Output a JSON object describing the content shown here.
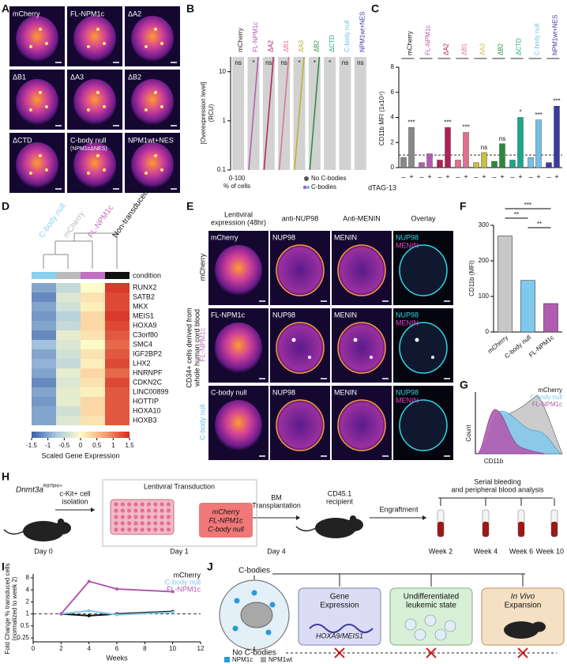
{
  "panel_letters": [
    "A",
    "B",
    "C",
    "D",
    "E",
    "F",
    "G",
    "H",
    "I",
    "J"
  ],
  "panels": {
    "A": {
      "labels": [
        "mCherry",
        "FL-NPM1c",
        "ΔA2",
        "ΔB1",
        "ΔA3",
        "ΔB2",
        "ΔCTD",
        "C-body null",
        "NPM1wt+NES"
      ],
      "sublabel": "(NPM1cΔNES)"
    },
    "B": {
      "ylabel": [
        "[Overexpression level]",
        "(RCU)"
      ],
      "xlabel": [
        "0-100",
        "% of cells"
      ],
      "columns": [
        "mCherry",
        "FL-NPM1c",
        "ΔA2",
        "ΔB1",
        "ΔA3",
        "ΔB2",
        "ΔCTD",
        "C-body null",
        "NPM1wt+NES"
      ],
      "colors": [
        "#222222",
        "#b05cb0",
        "#b0205a",
        "#e07090",
        "#b8b030",
        "#2a8a3a",
        "#1aa88a",
        "#70c0e8",
        "#3a3aa0"
      ],
      "significance": [
        "ns",
        "*",
        "ns",
        "ns",
        "*",
        "*",
        "*",
        "ns",
        "ns"
      ],
      "ylim": [
        0.1,
        20
      ],
      "yticks": [
        0.1,
        1,
        10
      ],
      "log_scale": true,
      "legend": [
        "No C-bodies",
        "C-bodies"
      ]
    },
    "D": {
      "columns": [
        "C-body null",
        "mCherry",
        "FL-NPM1c",
        "Non-transduced"
      ],
      "column_colors": [
        "#8ad0f0",
        "#bbbbbb",
        "#c070c0",
        "#111111"
      ],
      "condition_label": "condition",
      "genes": [
        "RUNX2",
        "SATB2",
        "MKX",
        "MEIS1",
        "HOXA9",
        "C3orf80",
        "SMC4",
        "IGF2BP2",
        "LHX2",
        "HNRNPF",
        "CDKN2C",
        "LINC00899",
        "HOTTIP",
        "HOXA10",
        "HOXB3"
      ],
      "values": [
        [
          -1,
          -0.5,
          0,
          1.4
        ],
        [
          -1.2,
          -0.3,
          0.2,
          1.3
        ],
        [
          -1,
          -0.4,
          0.1,
          1.3
        ],
        [
          -1.1,
          -0.6,
          0.3,
          1.4
        ],
        [
          -1,
          -0.5,
          0.3,
          1.3
        ],
        [
          -1.2,
          -0.2,
          0.2,
          1.2
        ],
        [
          -0.8,
          -0.3,
          0,
          1.1
        ],
        [
          -1,
          -0.4,
          0.2,
          1.2
        ],
        [
          -0.9,
          -0.5,
          0.1,
          1.3
        ],
        [
          -1,
          -0.2,
          0.3,
          1.1
        ],
        [
          -1.2,
          -0.3,
          0.2,
          1.3
        ],
        [
          -1,
          -0.2,
          0.1,
          1.2
        ],
        [
          -1.1,
          -0.2,
          0.3,
          1.2
        ],
        [
          -1,
          -0.4,
          0.3,
          1.2
        ],
        [
          -1,
          -0.3,
          0.2,
          1.2
        ]
      ],
      "clim": [
        -1.5,
        1.5
      ],
      "colorbar_ticks": [
        -1.5,
        -1,
        -0.5,
        0,
        0.5,
        1,
        1.5
      ],
      "colorbar_label": "Scaled Gene Expression"
    },
    "E": {
      "columns": [
        [
          "Lentiviral",
          "expression (48hr)"
        ],
        [
          "anti-NUP98"
        ],
        [
          "Anti-MENIN"
        ],
        [
          "Overlay"
        ]
      ],
      "rows": [
        "mCherry",
        "FL-NPM1c",
        "C-body null"
      ],
      "row_colors": [
        "#111111",
        "#c070c0",
        "#70c0e8"
      ],
      "side_label": [
        "CD34+ cells derived from",
        "whole human cord blood"
      ],
      "markers": [
        "NUP98",
        "MENIN"
      ]
    },
    "G": {
      "legend": [
        "mCherry",
        "C-body null",
        "FL-NPM1c"
      ],
      "colors": [
        "#cccccc",
        "#80c8ec",
        "#b05cb0"
      ],
      "ylabel": "Count",
      "xlabel": "CD11b"
    },
    "H": {
      "genotype": "Dnmt3a",
      "genotype_sup": "R878H/+",
      "isolation": [
        "c-Kit+ cell",
        "isolation"
      ],
      "transduction": "Lentiviral Transduction",
      "constructs": [
        "mCherry",
        "FL-NPM1c",
        "C-body null"
      ],
      "transplant": [
        "BM",
        "Transplantation"
      ],
      "recipient": [
        "CD45.1",
        "recipient"
      ],
      "engraftment": "Engraftment",
      "analysis": [
        "Serial bleeding",
        "and peripheral blood analysis"
      ],
      "timepoints": [
        "Day 0",
        "Day 1",
        "Day 4",
        "Week 2",
        "Week 4",
        "Week 6",
        "Week 10"
      ]
    },
    "J": {
      "top": "C-bodies",
      "bottom": "No C-bodies",
      "boxes": [
        [
          "Gene",
          "Expression"
        ],
        [
          "Undifferentiated",
          "leukemic state"
        ],
        [
          "In Vivo",
          "Expansion"
        ]
      ],
      "gene_label": "HOXA9/MEIS1",
      "legend": [
        "NPM1c",
        "NPM1wt"
      ]
    }
  },
  "chart_data": [
    {
      "type": "bar",
      "ylabel": "CD11b MFI (1x10⁴)",
      "xlabel": "dTAG-13",
      "categories": [
        "mCherry",
        "FL-NPM1c",
        "ΔA2",
        "ΔB1",
        "ΔA3",
        "ΔB2",
        "ΔCTD",
        "C-body null",
        "NPM1wt+NES"
      ],
      "colors": [
        "#888888",
        "#b05cb0",
        "#b0205a",
        "#e07090",
        "#c8c040",
        "#2a8a3a",
        "#1aa88a",
        "#70c0e8",
        "#3a3aa0"
      ],
      "series": [
        {
          "name": "–",
          "values": [
            0.8,
            0.4,
            0.6,
            0.6,
            0.4,
            0.5,
            0.6,
            0.8,
            0.4
          ]
        },
        {
          "name": "+",
          "values": [
            3.2,
            1.1,
            3.2,
            2.8,
            1.2,
            1.9,
            4.0,
            3.8,
            4.9
          ]
        }
      ],
      "significance": [
        "***",
        null,
        "***",
        "***",
        "ns",
        "ns",
        "*",
        "***",
        "***"
      ],
      "ylim": [
        0,
        8
      ],
      "yticks": [
        0,
        2,
        4,
        6,
        8
      ],
      "reference_line": 1
    },
    {
      "type": "bar",
      "ylabel": "CD11b (MFI)",
      "categories": [
        "mCherry",
        "C-body null",
        "FL-NPM1c"
      ],
      "values": [
        270,
        145,
        80
      ],
      "colors": [
        "#c8c8c8",
        "#80c8ec",
        "#b05cb0"
      ],
      "comparisons": [
        "**",
        "***",
        "**"
      ],
      "ylim": [
        0,
        300
      ],
      "yticks": [
        0,
        100,
        200,
        300
      ]
    },
    {
      "type": "line",
      "xlabel": "Weeks",
      "ylabel": [
        "Fold Change % transduced cells",
        "(normalized to week 2)"
      ],
      "x": [
        2,
        4,
        6,
        10
      ],
      "series": [
        {
          "name": "mCherry",
          "color": "#111111",
          "values": [
            1,
            0.9,
            1.0,
            1.15
          ]
        },
        {
          "name": "C-body null",
          "color": "#80c8ec",
          "values": [
            1,
            1.2,
            0.95,
            1.1
          ]
        },
        {
          "name": "FL-NPM1c",
          "color": "#b05cb0",
          "values": [
            1,
            6.5,
            4.2,
            3.6
          ]
        }
      ],
      "xlim": [
        0,
        12
      ],
      "xticks": [
        0,
        2,
        4,
        6,
        8,
        10,
        12
      ],
      "ylim": [
        0.2,
        10
      ],
      "yticks": [
        0.25,
        0.5,
        1,
        2,
        4,
        8
      ],
      "log_scale": true,
      "reference_line": 1
    }
  ]
}
